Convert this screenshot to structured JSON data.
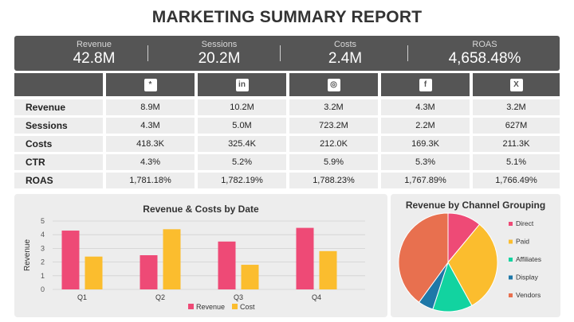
{
  "title": "MARKETING SUMMARY REPORT",
  "kpis": [
    {
      "label": "Revenue",
      "value": "42.8M"
    },
    {
      "label": "Sessions",
      "value": "20.2M"
    },
    {
      "label": "Costs",
      "value": "2.4M"
    },
    {
      "label": "ROAS",
      "value": "4,658.48%"
    }
  ],
  "channels": [
    {
      "icon": "asterisk-icon",
      "glyph": "*"
    },
    {
      "icon": "linkedin-icon",
      "glyph": "in"
    },
    {
      "icon": "instagram-icon",
      "glyph": "◎"
    },
    {
      "icon": "facebook-icon",
      "glyph": "f"
    },
    {
      "icon": "x-icon",
      "glyph": "X"
    }
  ],
  "table": {
    "rows": [
      {
        "label": "Revenue",
        "values": [
          "8.9M",
          "10.2M",
          "3.2M",
          "4.3M",
          "3.2M"
        ]
      },
      {
        "label": "Sessions",
        "values": [
          "4.3M",
          "5.0M",
          "723.2M",
          "2.2M",
          "627M"
        ]
      },
      {
        "label": "Costs",
        "values": [
          "418.3K",
          "325.4K",
          "212.0K",
          "169.3K",
          "211.3K"
        ]
      },
      {
        "label": "CTR",
        "values": [
          "4.3%",
          "5.2%",
          "5.9%",
          "5.3%",
          "5.1%"
        ]
      },
      {
        "label": "ROAS",
        "values": [
          "1,781.18%",
          "1,782.19%",
          "1,788.23%",
          "1,767.89%",
          "1,766.49%"
        ]
      }
    ]
  },
  "chart_data": [
    {
      "type": "bar",
      "title": "Revenue & Costs by Date",
      "xlabel": "",
      "ylabel": "Revenue",
      "ylim": [
        0,
        5
      ],
      "yticks": [
        0,
        1,
        2,
        3,
        4,
        5
      ],
      "grid": true,
      "legend": "bottom",
      "categories": [
        "Q1",
        "Q2",
        "Q3",
        "Q4"
      ],
      "series": [
        {
          "name": "Revenue",
          "color": "#ee4a76",
          "values": [
            4.3,
            2.5,
            3.5,
            4.5
          ]
        },
        {
          "name": "Cost",
          "color": "#fbbd2e",
          "values": [
            2.4,
            4.4,
            1.8,
            2.8
          ]
        }
      ]
    },
    {
      "type": "pie",
      "title": "Revenue by Channel Grouping",
      "legend": "right",
      "slices": [
        {
          "name": "Direct",
          "value": 11,
          "color": "#ee4a76"
        },
        {
          "name": "Paid",
          "value": 31,
          "color": "#fbbd2e"
        },
        {
          "name": "Affiliates",
          "value": 13,
          "color": "#12d3a0"
        },
        {
          "name": "Display",
          "value": 5,
          "color": "#1e78a8"
        },
        {
          "name": "Vendors",
          "value": 40,
          "color": "#e8704f"
        }
      ]
    }
  ]
}
